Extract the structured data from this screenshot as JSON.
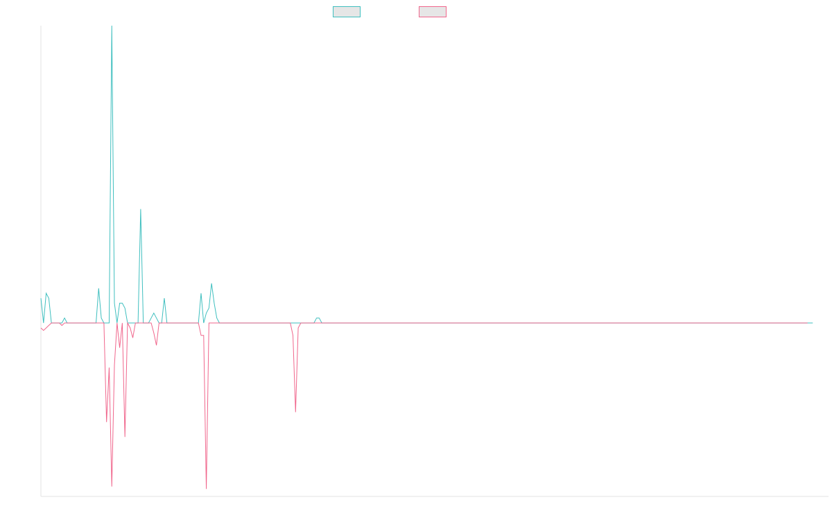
{
  "chart_data": {
    "type": "line",
    "title": "",
    "xlabel": "",
    "ylabel": "",
    "grid": false,
    "legend_position": "top-center",
    "xlim": [
      0,
      300
    ],
    "ylim": [
      -35,
      60
    ],
    "x_step": 1,
    "series": [
      {
        "color": "#3fbfbf",
        "values": [
          5,
          0,
          6,
          5,
          0,
          0,
          0,
          0,
          0,
          1,
          0,
          0,
          0,
          0,
          0,
          0,
          0,
          0,
          0,
          0,
          0,
          0,
          7,
          1,
          0,
          0,
          0,
          60,
          4,
          0,
          4,
          4,
          3,
          0,
          0,
          0,
          0,
          0,
          23,
          0,
          0,
          0,
          1,
          2,
          1,
          0,
          0,
          5,
          0,
          0,
          0,
          0,
          0,
          0,
          0,
          0,
          0,
          0,
          0,
          0,
          0,
          6,
          0,
          2,
          3,
          8,
          4,
          1,
          0,
          0,
          0,
          0,
          0,
          0,
          0,
          0,
          0,
          0,
          0,
          0,
          0,
          0,
          0,
          0,
          0,
          0,
          0,
          0,
          0,
          0,
          0,
          0,
          0,
          0,
          0,
          0,
          0,
          0,
          0,
          0,
          0,
          0,
          0,
          0,
          0,
          1,
          1,
          0,
          0,
          0,
          0,
          0,
          0,
          0,
          0,
          0,
          0,
          0,
          0,
          0,
          0,
          0,
          0,
          0,
          0,
          0,
          0,
          0,
          0,
          0,
          0,
          0,
          0,
          0,
          0,
          0,
          0,
          0,
          0,
          0,
          0,
          0,
          0,
          0,
          0,
          0,
          0,
          0,
          0,
          0,
          0,
          0,
          0,
          0,
          0,
          0,
          0,
          0,
          0,
          0,
          0,
          0,
          0,
          0,
          0,
          0,
          0,
          0,
          0,
          0,
          0,
          0,
          0,
          0,
          0,
          0,
          0,
          0,
          0,
          0,
          0,
          0,
          0,
          0,
          0,
          0,
          0,
          0,
          0,
          0,
          0,
          0,
          0,
          0,
          0,
          0,
          0,
          0,
          0,
          0,
          0,
          0,
          0,
          0,
          0,
          0,
          0,
          0,
          0,
          0,
          0,
          0,
          0,
          0,
          0,
          0,
          0,
          0,
          0,
          0,
          0,
          0,
          0,
          0,
          0,
          0,
          0,
          0,
          0,
          0,
          0,
          0,
          0,
          0,
          0,
          0,
          0,
          0,
          0,
          0,
          0,
          0,
          0,
          0,
          0,
          0,
          0,
          0,
          0,
          0,
          0,
          0,
          0,
          0,
          0,
          0,
          0,
          0,
          0,
          0,
          0,
          0,
          0,
          0,
          0,
          0,
          0,
          0,
          0,
          0,
          0,
          0,
          0,
          0,
          0,
          0,
          0,
          0,
          0,
          0,
          0,
          0,
          0,
          0,
          0,
          0,
          0,
          0,
          0,
          0,
          0,
          0,
          0,
          0,
          0
        ]
      },
      {
        "color": "#f0668c",
        "values": [
          -1,
          -1.5,
          -1,
          -0.5,
          0,
          0,
          0,
          0,
          -0.5,
          0,
          0,
          0,
          0,
          0,
          0,
          0,
          0,
          0,
          0,
          0,
          0,
          0,
          0,
          0,
          0,
          -20,
          -9,
          -33,
          -8.5,
          0,
          -5,
          0,
          -23,
          0,
          -1,
          -3,
          0,
          0,
          0,
          0,
          0,
          0,
          0,
          -2,
          -4.5,
          0,
          0,
          0,
          0,
          0,
          0,
          0,
          0,
          0,
          0,
          0,
          0,
          0,
          0,
          0,
          0,
          -2.5,
          -2.5,
          -33.5,
          0,
          0,
          0,
          0,
          0,
          0,
          0,
          0,
          0,
          0,
          0,
          0,
          0,
          0,
          0,
          0,
          0,
          0,
          0,
          0,
          0,
          0,
          0,
          0,
          0,
          0,
          0,
          0,
          0,
          0,
          0,
          0,
          -2.5,
          -18,
          -1,
          0,
          0,
          0,
          0,
          0,
          0,
          0,
          0,
          0,
          0,
          0,
          0,
          0,
          0,
          0,
          0,
          0,
          0,
          0,
          0,
          0,
          0,
          0,
          0,
          0,
          0,
          0,
          0,
          0,
          0,
          0,
          0,
          0,
          0,
          0,
          0,
          0,
          0,
          0,
          0,
          0,
          0,
          0,
          0,
          0,
          0,
          0,
          0,
          0,
          0,
          0,
          0,
          0,
          0,
          0,
          0,
          0,
          0,
          0,
          0,
          0,
          0,
          0,
          0,
          0,
          0,
          0,
          0,
          0,
          0,
          0,
          0,
          0,
          0,
          0,
          0,
          0,
          0,
          0,
          0,
          0,
          0,
          0,
          0,
          0,
          0,
          0,
          0,
          0,
          0,
          0,
          0,
          0,
          0,
          0,
          0,
          0,
          0,
          0,
          0,
          0,
          0,
          0,
          0,
          0,
          0,
          0,
          0,
          0,
          0,
          0,
          0,
          0,
          0,
          0,
          0,
          0,
          0,
          0,
          0,
          0,
          0,
          0,
          0,
          0,
          0,
          0,
          0,
          0,
          0,
          0,
          0,
          0,
          0,
          0,
          0,
          0,
          0,
          0,
          0,
          0,
          0,
          0,
          0,
          0,
          0,
          0,
          0,
          0,
          0,
          0,
          0,
          0,
          0,
          0,
          0,
          0,
          0,
          0,
          0,
          0,
          0,
          0,
          0,
          0,
          0,
          0,
          0,
          0,
          0,
          0,
          0,
          0,
          0,
          0,
          0,
          0,
          0,
          0,
          0,
          0,
          0,
          0,
          0,
          0,
          0,
          0,
          0,
          0,
          0,
          0,
          0,
          0,
          0
        ]
      }
    ]
  }
}
